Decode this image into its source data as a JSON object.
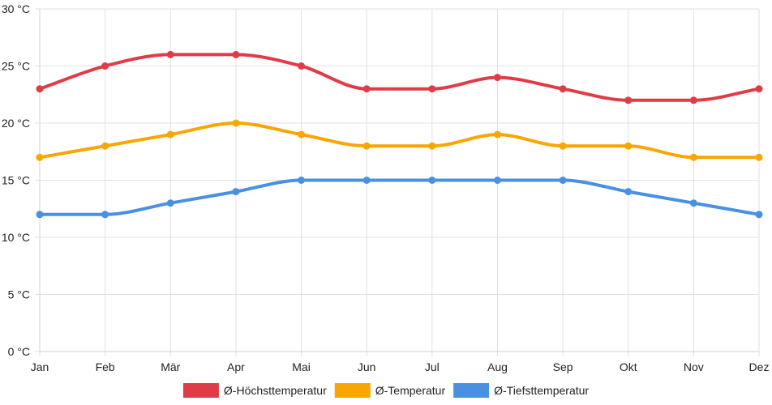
{
  "chart_data": {
    "type": "line",
    "title": "",
    "xlabel": "",
    "ylabel": "",
    "categories": [
      "Jan",
      "Feb",
      "Mär",
      "Apr",
      "Mai",
      "Jun",
      "Jul",
      "Aug",
      "Sep",
      "Okt",
      "Nov",
      "Dez"
    ],
    "ylim": [
      0,
      30
    ],
    "ytick_values": [
      0,
      5,
      10,
      15,
      20,
      25,
      30
    ],
    "ytick_labels": [
      "0 °C",
      "5 °C",
      "10 °C",
      "15 °C",
      "20 °C",
      "25 °C",
      "30 °C"
    ],
    "grid": true,
    "legend_position": "bottom-center",
    "series": [
      {
        "name": "Ø-Höchsttemperatur",
        "color": "#e03c48",
        "values": [
          23,
          25,
          26,
          26,
          25,
          23,
          23,
          24,
          23,
          22,
          22,
          23
        ]
      },
      {
        "name": "Ø-Temperatur",
        "color": "#f9a602",
        "values": [
          17,
          18,
          19,
          20,
          19,
          18,
          18,
          19,
          18,
          18,
          17,
          17
        ]
      },
      {
        "name": "Ø-Tiefsttemperatur",
        "color": "#4a90e2",
        "values": [
          12,
          12,
          13,
          14,
          15,
          15,
          15,
          15,
          15,
          14,
          13,
          12
        ]
      }
    ]
  }
}
